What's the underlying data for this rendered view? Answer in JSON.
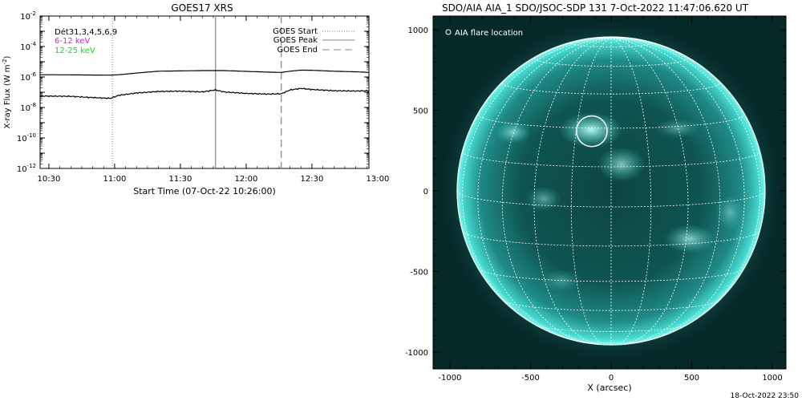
{
  "chart_data": [
    {
      "type": "line",
      "title": "GOES17 XRS",
      "xlabel": "Start Time (07-Oct-22 10:26:00)",
      "ylabel_main": "X-ray Flux (W m",
      "ylabel_sup": "-2",
      "ylabel_close": ")",
      "y_scale": "log",
      "ylim_exponent": [
        -12,
        -2
      ],
      "xlim_minutes": [
        26,
        176
      ],
      "x_tick_labels": [
        {
          "label": "10:30",
          "minute": 30
        },
        {
          "label": "11:00",
          "minute": 60
        },
        {
          "label": "11:30",
          "minute": 90
        },
        {
          "label": "12:00",
          "minute": 120
        },
        {
          "label": "12:30",
          "minute": 150
        },
        {
          "label": "13:00",
          "minute": 180
        }
      ],
      "y_tick_labels": [
        {
          "base": "10",
          "exp": "-2",
          "value": -2
        },
        {
          "base": "10",
          "exp": "-4",
          "value": -4
        },
        {
          "base": "10",
          "exp": "-6",
          "value": -6
        },
        {
          "base": "10",
          "exp": "-8",
          "value": -8
        },
        {
          "base": "10",
          "exp": "-10",
          "value": -10
        },
        {
          "base": "10",
          "exp": "-12",
          "value": -12
        }
      ],
      "annotations": {
        "detectors": "Dét31,3,4,5,6,9",
        "band_low": {
          "label": "6-12 keV",
          "color": "#d21ed2"
        },
        "band_high": {
          "label": "12-25 keV",
          "color": "#1ed21e"
        }
      },
      "legend": [
        {
          "label": "GOES Start",
          "style": "dotted"
        },
        {
          "label": "GOES Peak",
          "style": "solid"
        },
        {
          "label": "GOES End",
          "style": "dashed"
        }
      ],
      "event_lines_minutes": {
        "start": 59,
        "peak": 106,
        "end": 136
      },
      "series": [
        {
          "name": "GOES long channel",
          "x": [
            26,
            40,
            58,
            62,
            70,
            80,
            90,
            100,
            110,
            120,
            130,
            136,
            140,
            145,
            150,
            160,
            170,
            176
          ],
          "log_flux": [
            -5.85,
            -5.86,
            -5.88,
            -5.85,
            -5.74,
            -5.62,
            -5.6,
            -5.58,
            -5.58,
            -5.63,
            -5.68,
            -5.7,
            -5.62,
            -5.55,
            -5.56,
            -5.62,
            -5.66,
            -5.7
          ]
        },
        {
          "name": "GOES short channel",
          "x": [
            26,
            40,
            50,
            58,
            62,
            70,
            80,
            90,
            100,
            106,
            110,
            120,
            130,
            136,
            140,
            145,
            150,
            160,
            170,
            176
          ],
          "log_flux": [
            -7.25,
            -7.27,
            -7.35,
            -7.4,
            -7.2,
            -7.05,
            -6.95,
            -6.93,
            -6.98,
            -6.85,
            -6.98,
            -7.08,
            -7.12,
            -7.1,
            -6.85,
            -6.75,
            -6.82,
            -6.9,
            -6.92,
            -6.9
          ]
        }
      ]
    },
    {
      "type": "image",
      "title": "SDO/AIA AIA_1 SDO/JSOC-SDP 131  7-Oct-2022 11:47:06.620 UT",
      "xlabel": "X (arcsec)",
      "xlim": [
        -1100,
        1100
      ],
      "ylim": [
        -1100,
        1100
      ],
      "x_tick_labels": [
        "-1000",
        "-500",
        "0",
        "500",
        "1000"
      ],
      "x_tick_values": [
        -1000,
        -500,
        0,
        500,
        1000
      ],
      "y_tick_labels": [
        "1000",
        "500",
        "0",
        "-500",
        "-1000"
      ],
      "y_tick_values": [
        1000,
        500,
        0,
        -500,
        -1000
      ],
      "legend": [
        {
          "label": "AIA flare location",
          "marker": "circle"
        }
      ],
      "flare_location_arcsec": {
        "x": -120,
        "y": 370,
        "radius": 95
      },
      "solar_radius_arcsec": 955,
      "colors": {
        "background": "#062c2a",
        "disk_edge": "#3ee6d8",
        "disk_center": "#0b3f3d",
        "grid": "#ffffff"
      }
    }
  ],
  "footer": {
    "timestamp": "18-Oct-2022 23:50"
  }
}
